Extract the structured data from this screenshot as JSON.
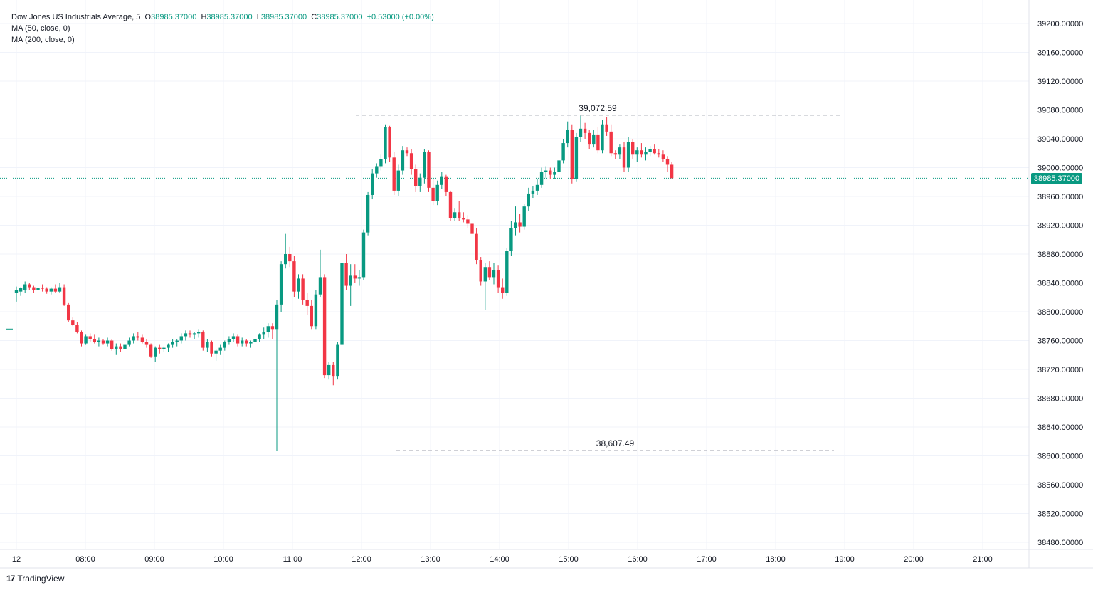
{
  "legend": {
    "symbol": "Dow Jones US Industrials Average, 5",
    "o_label": "O",
    "o_val": "38985.37000",
    "h_label": "H",
    "h_val": "38985.37000",
    "l_label": "L",
    "l_val": "38985.37000",
    "c_label": "C",
    "c_val": "38985.37000",
    "change": "+0.53000 (+0.00%)",
    "ma50": "MA (50, close, 0)",
    "ma200": "MA (200, close, 0)"
  },
  "brand": {
    "logo": "17",
    "name": "TradingView"
  },
  "colors": {
    "up": "#089981",
    "down": "#f23645",
    "grid": "#f0f3fa",
    "text": "#131722"
  },
  "chart_data": {
    "type": "candlestick",
    "interval": "5",
    "ylim": [
      38460,
      39220
    ],
    "y_ticks": [
      "39200.00000",
      "39160.00000",
      "39120.00000",
      "39080.00000",
      "39040.00000",
      "39000.00000",
      "38960.00000",
      "38920.00000",
      "38880.00000",
      "38840.00000",
      "38800.00000",
      "38760.00000",
      "38720.00000",
      "38680.00000",
      "38640.00000",
      "38600.00000",
      "38560.00000",
      "38520.00000",
      "38480.00000"
    ],
    "x_ticks": [
      "12",
      "08:00",
      "09:00",
      "10:00",
      "11:00",
      "12:00",
      "13:00",
      "14:00",
      "15:00",
      "16:00",
      "17:00",
      "18:00",
      "19:00",
      "20:00",
      "21:00"
    ],
    "last_price": "38985.37000",
    "last_price_value": 38985.37,
    "annotations": [
      {
        "label": "39,072.59",
        "price": 39072.59,
        "from": "12:00",
        "to": "19:00"
      },
      {
        "label": "38,607.49",
        "price": 38607.49,
        "from": "12:30",
        "to": "19:00"
      }
    ],
    "candles": [
      [
        38826,
        38835,
        38814,
        38830
      ],
      [
        38828,
        38834,
        38822,
        38833
      ],
      [
        38830,
        38842,
        38826,
        38838
      ],
      [
        38838,
        38840,
        38830,
        38834
      ],
      [
        38834,
        38836,
        38826,
        38830
      ],
      [
        38830,
        38838,
        38826,
        38833
      ],
      [
        38833,
        38838,
        38828,
        38832
      ],
      [
        38832,
        38834,
        38825,
        38828
      ],
      [
        38828,
        38834,
        38824,
        38832
      ],
      [
        38832,
        38838,
        38826,
        38828
      ],
      [
        38828,
        38840,
        38826,
        38834
      ],
      [
        38834,
        38838,
        38808,
        38810
      ],
      [
        38810,
        38812,
        38786,
        38788
      ],
      [
        38788,
        38792,
        38780,
        38782
      ],
      [
        38782,
        38786,
        38770,
        38772
      ],
      [
        38772,
        38774,
        38752,
        38756
      ],
      [
        38756,
        38768,
        38754,
        38766
      ],
      [
        38766,
        38770,
        38758,
        38762
      ],
      [
        38762,
        38768,
        38756,
        38758
      ],
      [
        38758,
        38764,
        38752,
        38760
      ],
      [
        38760,
        38762,
        38754,
        38756
      ],
      [
        38756,
        38764,
        38752,
        38760
      ],
      [
        38760,
        38762,
        38746,
        38748
      ],
      [
        38748,
        38756,
        38740,
        38752
      ],
      [
        38752,
        38756,
        38744,
        38748
      ],
      [
        38748,
        38756,
        38744,
        38754
      ],
      [
        38754,
        38764,
        38752,
        38760
      ],
      [
        38760,
        38770,
        38756,
        38766
      ],
      [
        38766,
        38772,
        38760,
        38764
      ],
      [
        38764,
        38768,
        38756,
        38758
      ],
      [
        38758,
        38762,
        38750,
        38754
      ],
      [
        38754,
        38756,
        38736,
        38738
      ],
      [
        38738,
        38752,
        38730,
        38750
      ],
      [
        38750,
        38754,
        38742,
        38748
      ],
      [
        38748,
        38752,
        38744,
        38750
      ],
      [
        38750,
        38756,
        38744,
        38754
      ],
      [
        38754,
        38762,
        38750,
        38758
      ],
      [
        38758,
        38762,
        38752,
        38760
      ],
      [
        38760,
        38770,
        38756,
        38766
      ],
      [
        38766,
        38774,
        38760,
        38770
      ],
      [
        38770,
        38774,
        38764,
        38768
      ],
      [
        38768,
        38772,
        38762,
        38770
      ],
      [
        38770,
        38776,
        38764,
        38772
      ],
      [
        38772,
        38774,
        38746,
        38750
      ],
      [
        38750,
        38762,
        38744,
        38758
      ],
      [
        38758,
        38760,
        38738,
        38742
      ],
      [
        38742,
        38748,
        38732,
        38746
      ],
      [
        38746,
        38754,
        38740,
        38750
      ],
      [
        38750,
        38760,
        38746,
        38758
      ],
      [
        38758,
        38766,
        38754,
        38762
      ],
      [
        38762,
        38770,
        38758,
        38766
      ],
      [
        38766,
        38768,
        38752,
        38756
      ],
      [
        38756,
        38764,
        38752,
        38760
      ],
      [
        38760,
        38762,
        38752,
        38756
      ],
      [
        38756,
        38760,
        38750,
        38758
      ],
      [
        38758,
        38766,
        38754,
        38762
      ],
      [
        38762,
        38770,
        38758,
        38768
      ],
      [
        38768,
        38778,
        38762,
        38772
      ],
      [
        38772,
        38784,
        38764,
        38780
      ],
      [
        38780,
        38784,
        38762,
        38776
      ],
      [
        38776,
        38816,
        38607,
        38810
      ],
      [
        38810,
        38870,
        38800,
        38866
      ],
      [
        38866,
        38908,
        38860,
        38880
      ],
      [
        38880,
        38890,
        38862,
        38870
      ],
      [
        38870,
        38878,
        38820,
        38828
      ],
      [
        38828,
        38852,
        38818,
        38846
      ],
      [
        38846,
        38852,
        38810,
        38816
      ],
      [
        38816,
        38826,
        38796,
        38808
      ],
      [
        38808,
        38816,
        38776,
        38780
      ],
      [
        38780,
        38830,
        38776,
        38824
      ],
      [
        38824,
        38886,
        38820,
        38848
      ],
      [
        38848,
        38852,
        38708,
        38712
      ],
      [
        38712,
        38730,
        38706,
        38726
      ],
      [
        38726,
        38730,
        38698,
        38710
      ],
      [
        38710,
        38758,
        38706,
        38754
      ],
      [
        38754,
        38874,
        38750,
        38868
      ],
      [
        38868,
        38880,
        38830,
        38836
      ],
      [
        38836,
        38866,
        38808,
        38850
      ],
      [
        38850,
        38866,
        38840,
        38846
      ],
      [
        38846,
        38858,
        38836,
        38848
      ],
      [
        38848,
        38914,
        38844,
        38910
      ],
      [
        38910,
        38966,
        38906,
        38962
      ],
      [
        38962,
        38998,
        38956,
        38992
      ],
      [
        38992,
        39006,
        38986,
        39002
      ],
      [
        39002,
        39018,
        38996,
        39012
      ],
      [
        39012,
        39060,
        39006,
        39056
      ],
      [
        39056,
        39058,
        39008,
        39014
      ],
      [
        39014,
        39022,
        38962,
        38968
      ],
      [
        38968,
        39004,
        38960,
        38996
      ],
      [
        38996,
        39030,
        38990,
        39024
      ],
      [
        39024,
        39028,
        39016,
        39020
      ],
      [
        39020,
        39026,
        38990,
        38998
      ],
      [
        38998,
        39004,
        38966,
        38974
      ],
      [
        38974,
        38992,
        38966,
        38986
      ],
      [
        38986,
        39026,
        38978,
        39022
      ],
      [
        39022,
        39024,
        38966,
        38972
      ],
      [
        38972,
        38984,
        38948,
        38954
      ],
      [
        38954,
        38982,
        38948,
        38976
      ],
      [
        38976,
        38994,
        38970,
        38988
      ],
      [
        38988,
        38990,
        38960,
        38966
      ],
      [
        38966,
        38968,
        38926,
        38930
      ],
      [
        38930,
        38944,
        38926,
        38938
      ],
      [
        38938,
        38954,
        38926,
        38930
      ],
      [
        38930,
        38938,
        38924,
        38928
      ],
      [
        38928,
        38934,
        38916,
        38922
      ],
      [
        38922,
        38926,
        38904,
        38908
      ],
      [
        38908,
        38916,
        38866,
        38872
      ],
      [
        38872,
        38876,
        38836,
        38842
      ],
      [
        38842,
        38868,
        38802,
        38862
      ],
      [
        38862,
        38870,
        38844,
        38848
      ],
      [
        38848,
        38868,
        38838,
        38858
      ],
      [
        38858,
        38864,
        38826,
        38834
      ],
      [
        38834,
        38846,
        38818,
        38826
      ],
      [
        38826,
        38888,
        38822,
        38884
      ],
      [
        38884,
        38926,
        38878,
        38916
      ],
      [
        38916,
        38946,
        38906,
        38924
      ],
      [
        38924,
        38936,
        38910,
        38918
      ],
      [
        38918,
        38950,
        38914,
        38946
      ],
      [
        38946,
        38972,
        38940,
        38964
      ],
      [
        38964,
        38974,
        38958,
        38968
      ],
      [
        38968,
        38984,
        38962,
        38976
      ],
      [
        38976,
        39000,
        38972,
        38994
      ],
      [
        38994,
        39002,
        38986,
        38996
      ],
      [
        38996,
        39000,
        38984,
        38990
      ],
      [
        38990,
        39000,
        38984,
        38994
      ],
      [
        38994,
        39016,
        38990,
        39010
      ],
      [
        39010,
        39040,
        39006,
        39034
      ],
      [
        39034,
        39064,
        39028,
        39052
      ],
      [
        39052,
        39060,
        38978,
        38984
      ],
      [
        38984,
        39048,
        38980,
        39042
      ],
      [
        39042,
        39072,
        39036,
        39054
      ],
      [
        39054,
        39062,
        39040,
        39048
      ],
      [
        39048,
        39052,
        39026,
        39032
      ],
      [
        39032,
        39052,
        39028,
        39046
      ],
      [
        39046,
        39056,
        39020,
        39024
      ],
      [
        39024,
        39066,
        39020,
        39060
      ],
      [
        39060,
        39070,
        39044,
        39050
      ],
      [
        39050,
        39060,
        39016,
        39020
      ],
      [
        39020,
        39024,
        39012,
        39018
      ],
      [
        39018,
        39032,
        39012,
        39028
      ],
      [
        39028,
        39036,
        38994,
        39000
      ],
      [
        39000,
        39042,
        38994,
        39036
      ],
      [
        39036,
        39040,
        39012,
        39018
      ],
      [
        39018,
        39028,
        39008,
        39024
      ],
      [
        39024,
        39034,
        39014,
        39018
      ],
      [
        39018,
        39028,
        39010,
        39022
      ],
      [
        39022,
        39030,
        39016,
        39026
      ],
      [
        39026,
        39032,
        39018,
        39020
      ],
      [
        39020,
        39026,
        39014,
        39018
      ],
      [
        39018,
        39024,
        39008,
        39012
      ],
      [
        39012,
        39016,
        38994,
        39004
      ],
      [
        39004,
        39008,
        38985,
        38985.37
      ]
    ]
  }
}
